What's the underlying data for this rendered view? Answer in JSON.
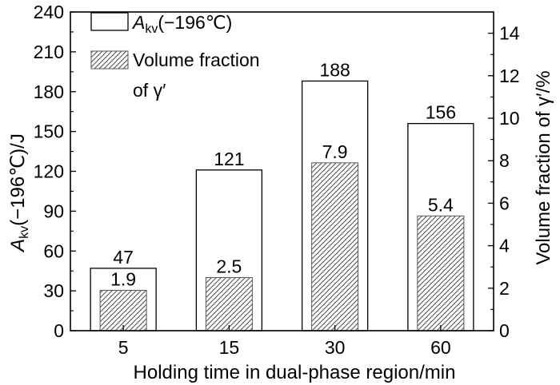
{
  "chart_data": {
    "type": "bar",
    "categories": [
      "5",
      "15",
      "30",
      "60"
    ],
    "series": [
      {
        "name": "A_kv(−196℃)",
        "axis": "left",
        "values": [
          47,
          121,
          188,
          156
        ],
        "value_labels": [
          "47",
          "121",
          "188",
          "156"
        ],
        "fill": "white"
      },
      {
        "name": "Volume fraction of γ′",
        "axis": "right",
        "values": [
          1.9,
          2.5,
          7.9,
          5.4
        ],
        "value_labels": [
          "1.9",
          "2.5",
          "7.9",
          "5.4"
        ],
        "fill": "hatched"
      }
    ],
    "xlabel": "Holding time in dual-phase region/min",
    "ylabel_left": {
      "symbol": "A",
      "subscript": "kv",
      "rest": "(−196℃)/J"
    },
    "ylabel_right": "Volume fraction of γ′/%",
    "ylim_left": [
      0,
      240
    ],
    "yticks_left": [
      "0",
      "30",
      "60",
      "90",
      "120",
      "150",
      "180",
      "210",
      "240"
    ],
    "ylim_right": [
      0,
      15
    ],
    "yticks_right": [
      "0",
      "2",
      "4",
      "6",
      "8",
      "10",
      "12",
      "14"
    ],
    "legend": {
      "placement": "top-left",
      "entries": [
        {
          "symbol": "A",
          "subscript": "kv",
          "rest": "(−196℃)"
        },
        {
          "line1": "Volume fraction",
          "line2": "of γ′"
        }
      ]
    },
    "grid": false
  },
  "colors": {
    "axis": "#000000",
    "bar_fill": "#ffffff",
    "hatch": "#555555",
    "background": "#ffffff"
  }
}
